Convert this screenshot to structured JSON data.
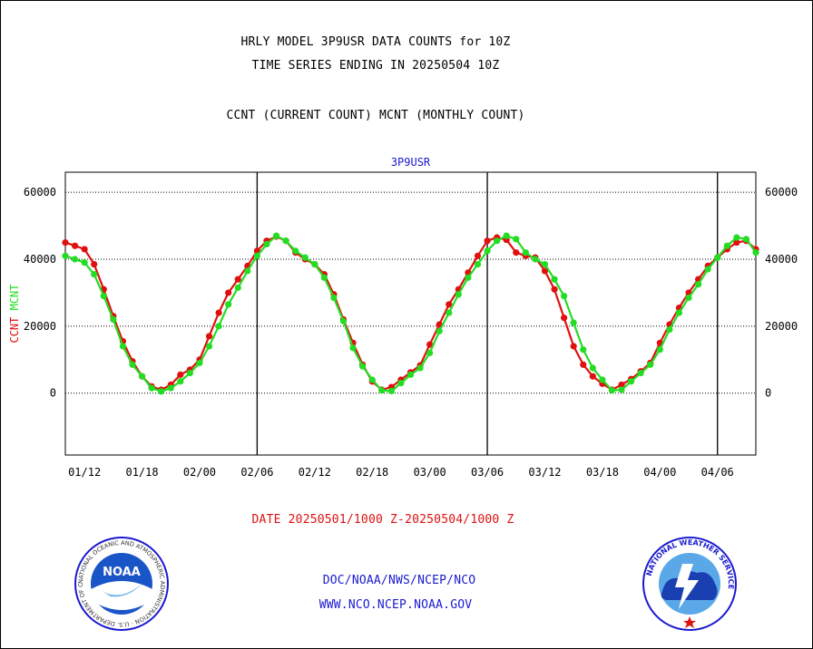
{
  "header": {
    "title_line1": "HRLY MODEL 3P9USR DATA COUNTS for 10Z",
    "title_line2": "TIME SERIES ENDING IN 20250504 10Z",
    "legend_line": "CCNT (CURRENT COUNT) MCNT (MONTHLY COUNT)"
  },
  "footer": {
    "date_range": "DATE 20250501/1000 Z-20250504/1000 Z",
    "org_path": "DOC/NOAA/NWS/NCEP/NCO",
    "website": "WWW.NCO.NCEP.NOAA.GOV"
  },
  "logos": {
    "left": {
      "text": "NOAA",
      "ring_text": "NATIONAL OCEANIC AND ATMOSPHERIC ADMINISTRATION · U.S. DEPARTMENT OF COMMERCE"
    },
    "right": {
      "ring_text": "NATIONAL WEATHER SERVICE"
    }
  },
  "colors": {
    "ccnt": "#e01010",
    "mcnt": "#22dd22",
    "subtitle": "#1a1ad0",
    "date_text": "#e01010"
  },
  "chart_data": {
    "type": "line",
    "subtitle": "3P9USR",
    "ylabel_left": [
      "CCNT",
      "MCNT"
    ],
    "ylim": [
      -18500,
      66000
    ],
    "yticks": [
      0,
      20000,
      40000,
      60000
    ],
    "ytick_labels": [
      "0",
      "20000",
      "40000",
      "60000"
    ],
    "xlim": [
      0,
      72
    ],
    "xticks": [
      2,
      8,
      14,
      20,
      26,
      32,
      38,
      44,
      50,
      56,
      62,
      68
    ],
    "xtick_labels": [
      "01/12",
      "01/18",
      "02/00",
      "02/06",
      "02/12",
      "02/18",
      "03/00",
      "03/06",
      "03/12",
      "03/18",
      "04/00",
      "04/06"
    ],
    "day_boundaries": [
      20,
      44,
      68
    ],
    "grid_y": true,
    "series": [
      {
        "name": "CCNT",
        "color": "#e01010",
        "x": [
          0,
          1,
          2,
          3,
          4,
          5,
          6,
          7,
          8,
          9,
          10,
          11,
          12,
          13,
          14,
          15,
          16,
          17,
          18,
          19,
          20,
          21,
          22,
          23,
          24,
          25,
          26,
          27,
          28,
          29,
          30,
          31,
          32,
          33,
          34,
          35,
          36,
          37,
          38,
          39,
          40,
          41,
          42,
          43,
          44,
          45,
          46,
          47,
          48,
          49,
          50,
          51,
          52,
          53,
          54,
          55,
          56,
          57,
          58,
          59,
          60,
          61,
          62,
          63,
          64,
          65,
          66,
          67,
          68,
          69,
          70,
          71,
          72
        ],
        "y": [
          45000,
          44000,
          43000,
          38500,
          31000,
          23000,
          15500,
          9500,
          5000,
          2000,
          1000,
          2500,
          5500,
          7000,
          10000,
          17000,
          24000,
          30000,
          34000,
          38000,
          42500,
          45500,
          46800,
          45500,
          42000,
          40000,
          38500,
          35500,
          29500,
          22000,
          15000,
          8500,
          3500,
          1000,
          1800,
          4000,
          6200,
          8300,
          14500,
          20500,
          26500,
          31000,
          36000,
          41000,
          45500,
          46500,
          45800,
          42000,
          41000,
          40500,
          36500,
          31000,
          22500,
          14000,
          8500,
          5000,
          2800,
          1000,
          2500,
          4200,
          6500,
          9000,
          15000,
          20500,
          25500,
          30000,
          34000,
          38000,
          40500,
          43000,
          45000,
          45500,
          43000
        ]
      },
      {
        "name": "MCNT",
        "color": "#22dd22",
        "x": [
          0,
          1,
          2,
          3,
          4,
          5,
          6,
          7,
          8,
          9,
          10,
          11,
          12,
          13,
          14,
          15,
          16,
          17,
          18,
          19,
          20,
          21,
          22,
          23,
          24,
          25,
          26,
          27,
          28,
          29,
          30,
          31,
          32,
          33,
          34,
          35,
          36,
          37,
          38,
          39,
          40,
          41,
          42,
          43,
          44,
          45,
          46,
          47,
          48,
          49,
          50,
          51,
          52,
          53,
          54,
          55,
          56,
          57,
          58,
          59,
          60,
          61,
          62,
          63,
          64,
          65,
          66,
          67,
          68,
          69,
          70,
          71,
          72
        ],
        "y": [
          41000,
          40000,
          39000,
          35500,
          29000,
          22000,
          14000,
          8500,
          5000,
          1500,
          500,
          1500,
          3500,
          6000,
          9000,
          14000,
          20000,
          26500,
          31500,
          36500,
          41000,
          44500,
          47000,
          45500,
          42500,
          40500,
          38500,
          34500,
          28500,
          21500,
          13500,
          8000,
          4000,
          800,
          600,
          3000,
          5500,
          7500,
          12000,
          18500,
          24000,
          29500,
          34500,
          38500,
          42500,
          45500,
          47000,
          46000,
          42000,
          40000,
          38500,
          34000,
          29000,
          21000,
          13000,
          7500,
          4000,
          800,
          1000,
          3500,
          6000,
          8500,
          13000,
          19000,
          24000,
          28500,
          32500,
          37000,
          40500,
          44000,
          46500,
          46000,
          42000
        ]
      }
    ]
  }
}
